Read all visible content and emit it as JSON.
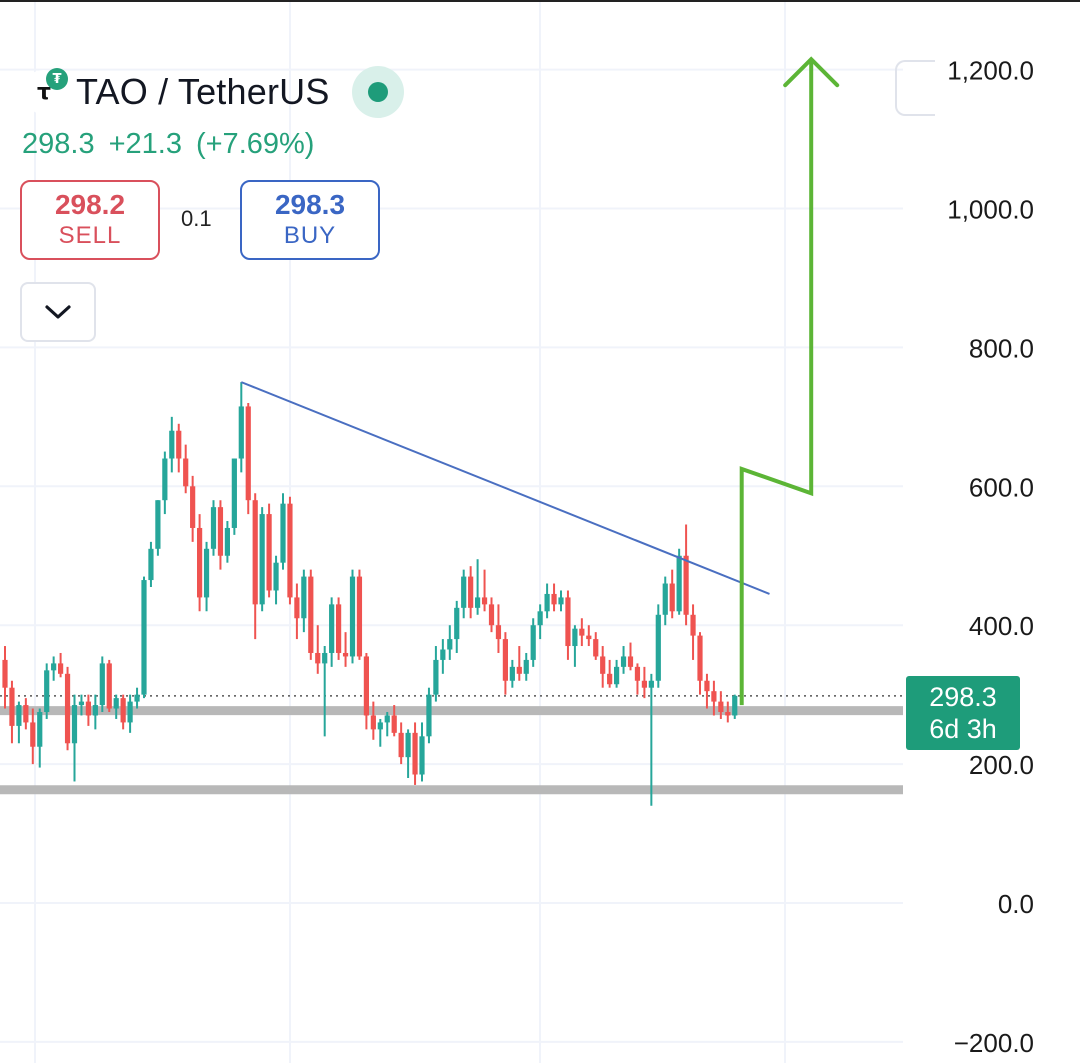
{
  "header": {
    "title": "TAO / TetherUS",
    "logo_glyph": "τ",
    "logo_badge_glyph": "₮",
    "price": "298.3",
    "change": "+21.3",
    "change_pct": "(+7.69%)",
    "status_color": "#1e9c7a"
  },
  "trade": {
    "sell_price": "298.2",
    "sell_label": "SELL",
    "spread": "0.1",
    "buy_price": "298.3",
    "buy_label": "BUY",
    "sell_color": "#d9505c",
    "buy_color": "#3a66c4"
  },
  "price_tag": {
    "price": "298.3",
    "countdown": "6d 3h",
    "color": "#1e9c7a"
  },
  "icons": {
    "dropdown": "chevron-down-icon",
    "logo": "tao-logo-icon",
    "status": "status-dot-icon"
  },
  "chart_data": {
    "type": "candlestick",
    "title": "",
    "ylim": [
      -200,
      1250
    ],
    "yticks": [
      1200,
      1000,
      800,
      600,
      400,
      200,
      0,
      -200
    ],
    "ytick_labels": [
      "1,200.0",
      "1,000.0",
      "800.0",
      "600.0",
      "400.0",
      "200.0",
      "0.0",
      "−200.0"
    ],
    "colors": {
      "up": "#26a69a",
      "down": "#ef5350",
      "grid": "#f0f3fa",
      "trendline": "#4a6fc1",
      "support": "#b8b8b8",
      "projection": "#5cb536"
    },
    "last_price": 298.3,
    "candles": [
      {
        "o": 350,
        "h": 370,
        "l": 280,
        "c": 310
      },
      {
        "o": 310,
        "h": 320,
        "l": 230,
        "c": 255
      },
      {
        "o": 255,
        "h": 290,
        "l": 230,
        "c": 285
      },
      {
        "o": 285,
        "h": 295,
        "l": 250,
        "c": 260
      },
      {
        "o": 260,
        "h": 280,
        "l": 200,
        "c": 225
      },
      {
        "o": 225,
        "h": 280,
        "l": 195,
        "c": 275
      },
      {
        "o": 275,
        "h": 345,
        "l": 265,
        "c": 335
      },
      {
        "o": 335,
        "h": 355,
        "l": 320,
        "c": 345
      },
      {
        "o": 345,
        "h": 360,
        "l": 325,
        "c": 330
      },
      {
        "o": 330,
        "h": 340,
        "l": 220,
        "c": 230
      },
      {
        "o": 230,
        "h": 300,
        "l": 175,
        "c": 285
      },
      {
        "o": 285,
        "h": 300,
        "l": 270,
        "c": 290
      },
      {
        "o": 290,
        "h": 300,
        "l": 255,
        "c": 270
      },
      {
        "o": 270,
        "h": 300,
        "l": 250,
        "c": 285
      },
      {
        "o": 285,
        "h": 355,
        "l": 275,
        "c": 345
      },
      {
        "o": 345,
        "h": 350,
        "l": 275,
        "c": 280
      },
      {
        "o": 280,
        "h": 300,
        "l": 265,
        "c": 295
      },
      {
        "o": 295,
        "h": 300,
        "l": 250,
        "c": 260
      },
      {
        "o": 260,
        "h": 300,
        "l": 245,
        "c": 290
      },
      {
        "o": 290,
        "h": 310,
        "l": 280,
        "c": 300
      },
      {
        "o": 300,
        "h": 470,
        "l": 295,
        "c": 465
      },
      {
        "o": 465,
        "h": 520,
        "l": 455,
        "c": 510
      },
      {
        "o": 510,
        "h": 580,
        "l": 500,
        "c": 580
      },
      {
        "o": 580,
        "h": 650,
        "l": 560,
        "c": 640
      },
      {
        "o": 640,
        "h": 700,
        "l": 620,
        "c": 680
      },
      {
        "o": 680,
        "h": 690,
        "l": 620,
        "c": 640
      },
      {
        "o": 640,
        "h": 660,
        "l": 590,
        "c": 600
      },
      {
        "o": 600,
        "h": 615,
        "l": 520,
        "c": 540
      },
      {
        "o": 540,
        "h": 560,
        "l": 420,
        "c": 440
      },
      {
        "o": 440,
        "h": 520,
        "l": 420,
        "c": 510
      },
      {
        "o": 510,
        "h": 580,
        "l": 500,
        "c": 570
      },
      {
        "o": 570,
        "h": 580,
        "l": 480,
        "c": 500
      },
      {
        "o": 500,
        "h": 550,
        "l": 490,
        "c": 540
      },
      {
        "o": 540,
        "h": 640,
        "l": 530,
        "c": 640
      },
      {
        "o": 640,
        "h": 750,
        "l": 620,
        "c": 715
      },
      {
        "o": 715,
        "h": 720,
        "l": 560,
        "c": 580
      },
      {
        "o": 580,
        "h": 590,
        "l": 380,
        "c": 430
      },
      {
        "o": 430,
        "h": 570,
        "l": 420,
        "c": 560
      },
      {
        "o": 560,
        "h": 575,
        "l": 440,
        "c": 450
      },
      {
        "o": 450,
        "h": 500,
        "l": 430,
        "c": 490
      },
      {
        "o": 490,
        "h": 590,
        "l": 480,
        "c": 575
      },
      {
        "o": 575,
        "h": 585,
        "l": 430,
        "c": 440
      },
      {
        "o": 440,
        "h": 460,
        "l": 380,
        "c": 410
      },
      {
        "o": 410,
        "h": 480,
        "l": 390,
        "c": 470
      },
      {
        "o": 470,
        "h": 480,
        "l": 350,
        "c": 360
      },
      {
        "o": 360,
        "h": 400,
        "l": 330,
        "c": 345
      },
      {
        "o": 345,
        "h": 370,
        "l": 240,
        "c": 360
      },
      {
        "o": 360,
        "h": 440,
        "l": 340,
        "c": 430
      },
      {
        "o": 430,
        "h": 440,
        "l": 350,
        "c": 360
      },
      {
        "o": 360,
        "h": 390,
        "l": 340,
        "c": 355
      },
      {
        "o": 355,
        "h": 480,
        "l": 345,
        "c": 470
      },
      {
        "o": 470,
        "h": 480,
        "l": 350,
        "c": 355
      },
      {
        "o": 355,
        "h": 360,
        "l": 250,
        "c": 270
      },
      {
        "o": 270,
        "h": 290,
        "l": 235,
        "c": 250
      },
      {
        "o": 250,
        "h": 265,
        "l": 225,
        "c": 260
      },
      {
        "o": 260,
        "h": 275,
        "l": 240,
        "c": 270
      },
      {
        "o": 270,
        "h": 285,
        "l": 240,
        "c": 245
      },
      {
        "o": 245,
        "h": 260,
        "l": 200,
        "c": 210
      },
      {
        "o": 210,
        "h": 250,
        "l": 180,
        "c": 245
      },
      {
        "o": 245,
        "h": 260,
        "l": 170,
        "c": 185
      },
      {
        "o": 185,
        "h": 260,
        "l": 175,
        "c": 240
      },
      {
        "o": 240,
        "h": 310,
        "l": 230,
        "c": 300
      },
      {
        "o": 300,
        "h": 370,
        "l": 290,
        "c": 350
      },
      {
        "o": 350,
        "h": 380,
        "l": 330,
        "c": 365
      },
      {
        "o": 365,
        "h": 400,
        "l": 350,
        "c": 380
      },
      {
        "o": 380,
        "h": 435,
        "l": 360,
        "c": 425
      },
      {
        "o": 425,
        "h": 480,
        "l": 410,
        "c": 470
      },
      {
        "o": 470,
        "h": 485,
        "l": 410,
        "c": 425
      },
      {
        "o": 425,
        "h": 495,
        "l": 415,
        "c": 440
      },
      {
        "o": 440,
        "h": 480,
        "l": 420,
        "c": 430
      },
      {
        "o": 430,
        "h": 440,
        "l": 390,
        "c": 400
      },
      {
        "o": 400,
        "h": 430,
        "l": 360,
        "c": 380
      },
      {
        "o": 380,
        "h": 390,
        "l": 300,
        "c": 320
      },
      {
        "o": 320,
        "h": 350,
        "l": 310,
        "c": 340
      },
      {
        "o": 340,
        "h": 370,
        "l": 320,
        "c": 330
      },
      {
        "o": 330,
        "h": 360,
        "l": 320,
        "c": 350
      },
      {
        "o": 350,
        "h": 410,
        "l": 340,
        "c": 400
      },
      {
        "o": 400,
        "h": 430,
        "l": 380,
        "c": 420
      },
      {
        "o": 420,
        "h": 460,
        "l": 410,
        "c": 445
      },
      {
        "o": 445,
        "h": 460,
        "l": 420,
        "c": 430
      },
      {
        "o": 430,
        "h": 450,
        "l": 420,
        "c": 440
      },
      {
        "o": 440,
        "h": 450,
        "l": 350,
        "c": 370
      },
      {
        "o": 370,
        "h": 400,
        "l": 340,
        "c": 395
      },
      {
        "o": 395,
        "h": 410,
        "l": 370,
        "c": 385
      },
      {
        "o": 385,
        "h": 400,
        "l": 370,
        "c": 380
      },
      {
        "o": 380,
        "h": 390,
        "l": 350,
        "c": 355
      },
      {
        "o": 355,
        "h": 370,
        "l": 310,
        "c": 330
      },
      {
        "o": 330,
        "h": 350,
        "l": 310,
        "c": 315
      },
      {
        "o": 315,
        "h": 350,
        "l": 310,
        "c": 340
      },
      {
        "o": 340,
        "h": 370,
        "l": 330,
        "c": 355
      },
      {
        "o": 355,
        "h": 375,
        "l": 335,
        "c": 340
      },
      {
        "o": 340,
        "h": 345,
        "l": 300,
        "c": 320
      },
      {
        "o": 320,
        "h": 340,
        "l": 295,
        "c": 310
      },
      {
        "o": 310,
        "h": 330,
        "l": 140,
        "c": 320
      },
      {
        "o": 320,
        "h": 430,
        "l": 310,
        "c": 415
      },
      {
        "o": 415,
        "h": 470,
        "l": 400,
        "c": 460
      },
      {
        "o": 460,
        "h": 480,
        "l": 410,
        "c": 420
      },
      {
        "o": 420,
        "h": 510,
        "l": 415,
        "c": 500
      },
      {
        "o": 500,
        "h": 545,
        "l": 400,
        "c": 415
      },
      {
        "o": 415,
        "h": 430,
        "l": 350,
        "c": 385
      },
      {
        "o": 385,
        "h": 390,
        "l": 300,
        "c": 320
      },
      {
        "o": 320,
        "h": 330,
        "l": 280,
        "c": 305
      },
      {
        "o": 305,
        "h": 320,
        "l": 270,
        "c": 290
      },
      {
        "o": 290,
        "h": 305,
        "l": 265,
        "c": 275
      },
      {
        "o": 275,
        "h": 290,
        "l": 260,
        "c": 270
      },
      {
        "o": 270,
        "h": 300,
        "l": 265,
        "c": 298.3
      }
    ],
    "trendline": [
      {
        "i": 34,
        "y": 750
      },
      {
        "i": 110,
        "y": 445
      }
    ],
    "support_levels": [
      277,
      163
    ],
    "projection_path": [
      {
        "i": 106,
        "y": 285
      },
      {
        "i": 106,
        "y": 625
      },
      {
        "i": 116,
        "y": 590
      },
      {
        "i": 116,
        "y": 1215
      }
    ]
  }
}
